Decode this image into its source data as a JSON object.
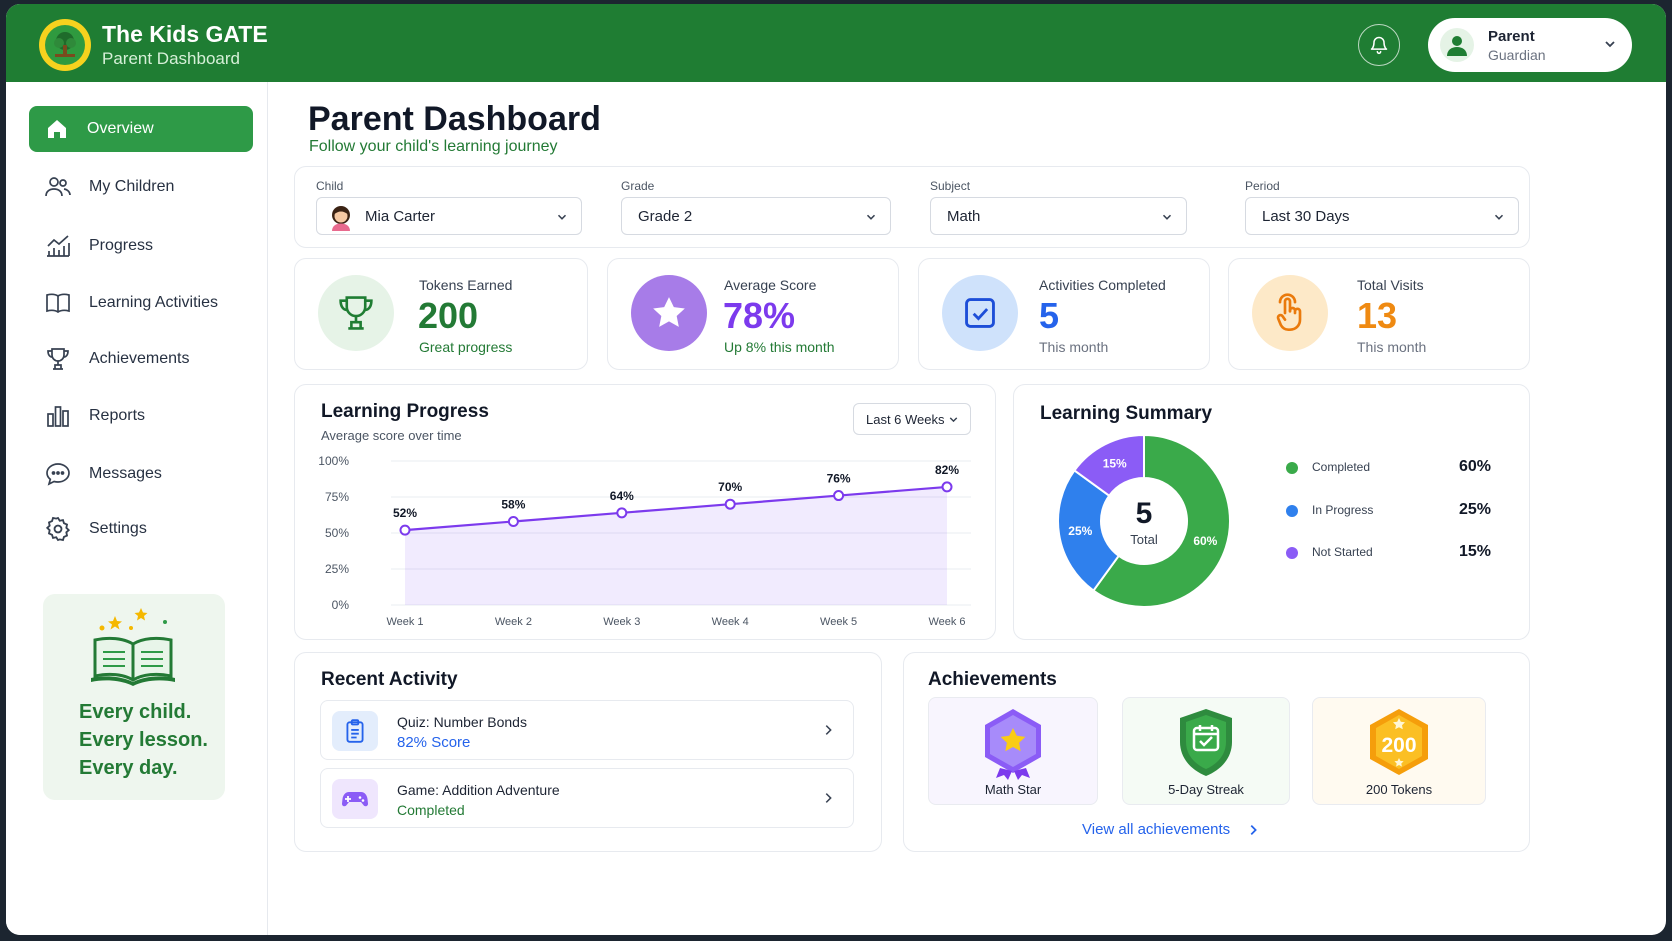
{
  "header": {
    "brand_title": "The Kids GATE",
    "brand_subtitle": "Parent Dashboard",
    "user": {
      "name": "Parent",
      "role": "Guardian"
    }
  },
  "sidebar": {
    "items": [
      {
        "label": "Overview",
        "icon": "home-icon",
        "active": true
      },
      {
        "label": "My Children",
        "icon": "users-icon"
      },
      {
        "label": "Progress",
        "icon": "progress-chart-icon"
      },
      {
        "label": "Learning Activities",
        "icon": "book-icon"
      },
      {
        "label": "Achievements",
        "icon": "trophy-icon"
      },
      {
        "label": "Reports",
        "icon": "bar-chart-icon"
      },
      {
        "label": "Messages",
        "icon": "message-icon"
      },
      {
        "label": "Settings",
        "icon": "gear-icon"
      }
    ],
    "promo": {
      "line1": "Every child.",
      "line2": "Every lesson.",
      "line3": "Every day."
    }
  },
  "page": {
    "title": "Parent Dashboard",
    "subtitle": "Follow your child's learning journey"
  },
  "filters": {
    "child": {
      "label": "Child",
      "value": "Mia Carter"
    },
    "grade": {
      "label": "Grade",
      "value": "Grade 2"
    },
    "subject": {
      "label": "Subject",
      "value": "Math"
    },
    "period": {
      "label": "Period",
      "value": "Last 30 Days"
    }
  },
  "stats": [
    {
      "label": "Tokens Earned",
      "value": "200",
      "note": "Great progress",
      "color": "#237a35"
    },
    {
      "label": "Average Score",
      "value": "78%",
      "note": "Up 8% this month",
      "color": "#7c3aed"
    },
    {
      "label": "Activities Completed",
      "value": "5",
      "note": "This month",
      "color": "#2563eb"
    },
    {
      "label": "Total Visits",
      "value": "13",
      "note": "This month",
      "color": "#ef8a12"
    }
  ],
  "progress": {
    "title": "Learning Progress",
    "subtitle": "Average score over time",
    "range": "Last 6 Weeks"
  },
  "chart_data": {
    "type": "line",
    "categories": [
      "Week 1",
      "Week 2",
      "Week 3",
      "Week 4",
      "Week 5",
      "Week 6"
    ],
    "values": [
      52,
      58,
      64,
      70,
      76,
      82
    ],
    "data_labels": [
      "52%",
      "58%",
      "64%",
      "70%",
      "76%",
      "82%"
    ],
    "y_ticks": [
      "100%",
      "75%",
      "50%",
      "25%",
      "0%"
    ],
    "ylim": [
      0,
      100
    ],
    "grid": true
  },
  "summary": {
    "title": "Learning Summary",
    "total_value": "5",
    "total_label": "Total",
    "items": [
      {
        "name": "Completed",
        "value": "60%",
        "pct": 60,
        "color": "#3aaa4a"
      },
      {
        "name": "In Progress",
        "value": "25%",
        "pct": 25,
        "color": "#2f80ed"
      },
      {
        "name": "Not Started",
        "value": "15%",
        "pct": 15,
        "color": "#8b5cf6"
      }
    ]
  },
  "recent": {
    "title": "Recent Activity",
    "items": [
      {
        "title": "Quiz: Number Bonds",
        "status": "82% Score",
        "icon": "clipboard-icon",
        "color": "#2563eb"
      },
      {
        "title": "Game: Addition Adventure",
        "status": "Completed",
        "icon": "gamepad-icon",
        "color": "#237a35"
      }
    ]
  },
  "achievements": {
    "title": "Achievements",
    "badges": [
      {
        "label": "Math Star",
        "icon": "star-badge-icon"
      },
      {
        "label": "5-Day Streak",
        "icon": "calendar-shield-icon"
      },
      {
        "label": "200 Tokens",
        "icon": "token-badge-icon",
        "badge_text": "200"
      }
    ],
    "view_all": "View all achievements"
  }
}
